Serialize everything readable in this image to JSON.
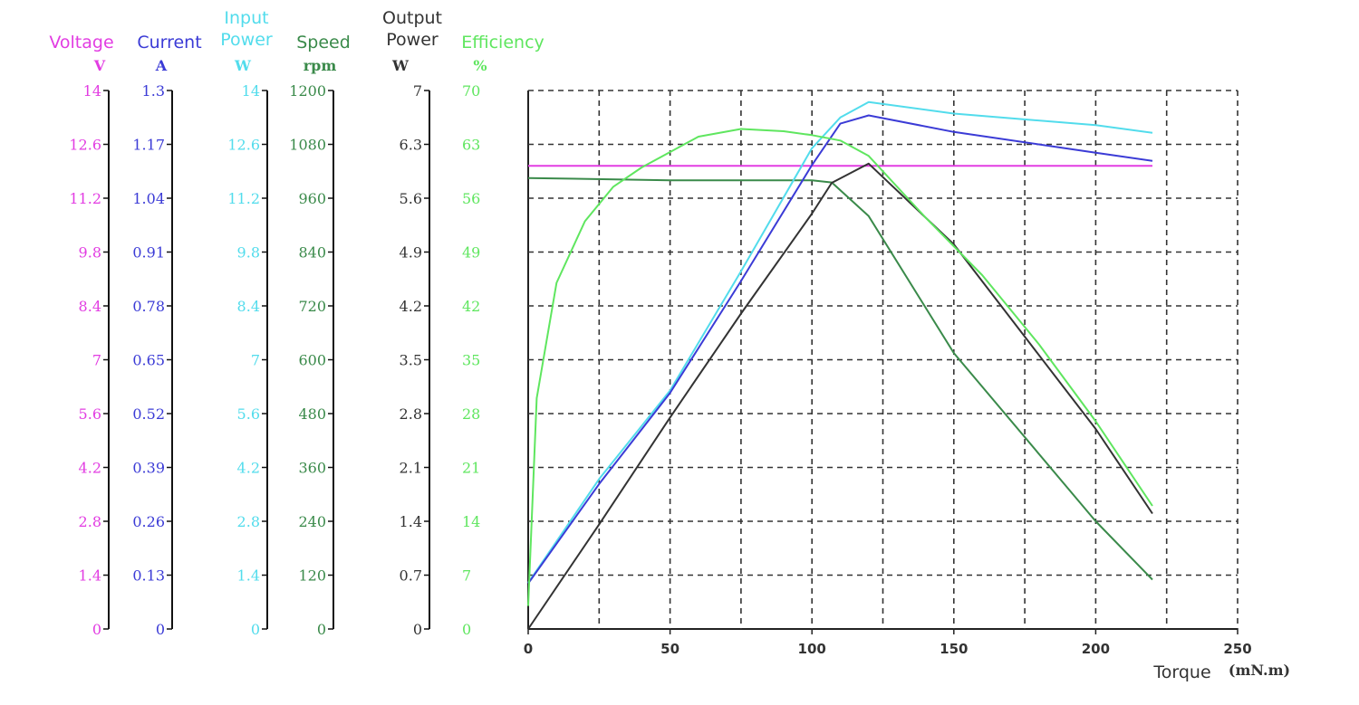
{
  "chart_data": {
    "type": "line",
    "xlabel": "Torque",
    "xunit": "(mN.m)",
    "x_ticks": [
      "0",
      "50",
      "100",
      "150",
      "200",
      "250"
    ],
    "xlim": [
      0,
      250
    ],
    "grid": true,
    "axes": [
      {
        "id": "voltage",
        "name": "Voltage",
        "name_lines": [
          "Voltage"
        ],
        "unit": "V",
        "color": "#e23de2",
        "ticks": [
          "0",
          "1.4",
          "2.8",
          "4.2",
          "5.6",
          "7",
          "8.4",
          "9.8",
          "11.2",
          "12.6",
          "14"
        ],
        "ylim": [
          0,
          14
        ]
      },
      {
        "id": "current",
        "name": "Current",
        "name_lines": [
          "Current"
        ],
        "unit": "A",
        "color": "#3b3bd6",
        "ticks": [
          "0",
          "0.13",
          "0.26",
          "0.39",
          "0.52",
          "0.65",
          "0.78",
          "0.91",
          "1.04",
          "1.17",
          "1.3"
        ],
        "ylim": [
          0,
          1.3
        ]
      },
      {
        "id": "input_power",
        "name": "Input Power",
        "name_lines": [
          "Input",
          "Power"
        ],
        "unit": "W",
        "color": "#52dcec",
        "ticks": [
          "0",
          "1.4",
          "2.8",
          "4.2",
          "5.6",
          "7",
          "8.4",
          "9.8",
          "11.2",
          "12.6",
          "14"
        ],
        "ylim": [
          0,
          14
        ]
      },
      {
        "id": "speed",
        "name": "Speed",
        "name_lines": [
          "Speed"
        ],
        "unit": "rpm",
        "color": "#3a8a4a",
        "ticks": [
          "0",
          "120",
          "240",
          "360",
          "480",
          "600",
          "720",
          "840",
          "960",
          "1080",
          "1200"
        ],
        "ylim": [
          0,
          1200
        ]
      },
      {
        "id": "output_power",
        "name": "Output Power",
        "name_lines": [
          "Output",
          "Power"
        ],
        "unit": "W",
        "color": "#333333",
        "ticks": [
          "0",
          "0.7",
          "1.4",
          "2.1",
          "2.8",
          "3.5",
          "4.2",
          "4.9",
          "5.6",
          "6.3",
          "7"
        ],
        "ylim": [
          0,
          7
        ]
      },
      {
        "id": "efficiency",
        "name": "Efficiency",
        "name_lines": [
          "Efficiency"
        ],
        "unit": "%",
        "color": "#5fe65f",
        "ticks": [
          "0",
          "7",
          "14",
          "21",
          "28",
          "35",
          "42",
          "49",
          "56",
          "63",
          "70"
        ],
        "ylim": [
          0,
          70
        ]
      }
    ],
    "series": [
      {
        "axis": "voltage",
        "color": "#e23de2",
        "x": [
          0,
          50,
          100,
          150,
          200,
          220
        ],
        "y": [
          12.04,
          12.04,
          12.04,
          12.04,
          12.04,
          12.04
        ]
      },
      {
        "axis": "speed",
        "color": "#3a8a4a",
        "x": [
          0,
          50,
          100,
          107,
          120,
          150,
          200,
          220
        ],
        "y": [
          1005,
          1000,
          1000,
          995,
          920,
          615,
          240,
          110
        ]
      },
      {
        "axis": "input_power",
        "color": "#52dcec",
        "x": [
          0,
          25,
          50,
          75,
          100,
          110,
          120,
          150,
          200,
          220
        ],
        "y": [
          1.2,
          3.9,
          6.2,
          9.3,
          12.5,
          13.3,
          13.7,
          13.4,
          13.1,
          12.9
        ]
      },
      {
        "axis": "current",
        "color": "#3b3bd6",
        "x": [
          0,
          25,
          50,
          75,
          100,
          110,
          120,
          150,
          200,
          220
        ],
        "y": [
          0.11,
          0.35,
          0.57,
          0.84,
          1.12,
          1.22,
          1.24,
          1.2,
          1.15,
          1.13
        ]
      },
      {
        "axis": "output_power",
        "color": "#333333",
        "x": [
          0,
          25,
          50,
          75,
          100,
          107,
          120,
          150,
          200,
          220
        ],
        "y": [
          0,
          1.36,
          2.75,
          4.1,
          5.4,
          5.8,
          6.05,
          5.0,
          2.6,
          1.5
        ]
      },
      {
        "axis": "efficiency",
        "color": "#5fe65f",
        "x": [
          0,
          3,
          10,
          20,
          30,
          40,
          50,
          60,
          75,
          90,
          100,
          110,
          120,
          140,
          160,
          180,
          200,
          220
        ],
        "y": [
          3,
          30,
          45,
          53,
          57.5,
          60,
          62,
          64,
          65,
          64.7,
          64.2,
          63.5,
          61.5,
          53.5,
          46,
          37,
          27,
          16
        ]
      }
    ]
  }
}
